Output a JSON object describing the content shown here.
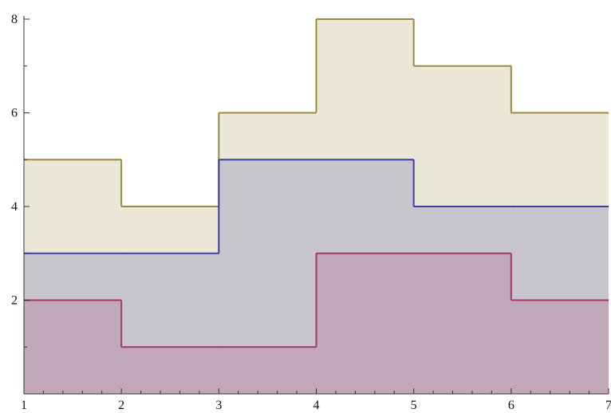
{
  "chart_data": {
    "type": "step",
    "x": [
      1,
      2,
      3,
      4,
      5,
      6
    ],
    "series": [
      {
        "color": "#9b8a3b",
        "values": [
          5,
          4,
          6,
          8,
          7,
          6
        ]
      },
      {
        "color": "#3d3d9e",
        "values": [
          3,
          3,
          5,
          5,
          4,
          4
        ]
      },
      {
        "color": "#a0386a",
        "values": [
          2,
          1,
          1,
          3,
          3,
          2
        ]
      }
    ],
    "xlim": [
      1,
      7
    ],
    "ylim": [
      0,
      8
    ],
    "xticks": [
      1,
      2,
      3,
      4,
      5,
      6,
      7
    ],
    "yticks": [
      2,
      4,
      6,
      8
    ],
    "xminorticks": [
      1.2,
      1.4,
      1.6,
      1.8,
      2.2,
      2.4,
      2.6,
      2.8,
      3.2,
      3.4,
      3.6,
      3.8,
      4.2,
      4.4,
      4.6,
      4.8,
      5.2,
      5.4,
      5.6,
      5.8,
      6.2,
      6.4,
      6.6,
      6.8
    ],
    "yminorticks": [
      1,
      3,
      5,
      7
    ],
    "fill": "axis"
  }
}
